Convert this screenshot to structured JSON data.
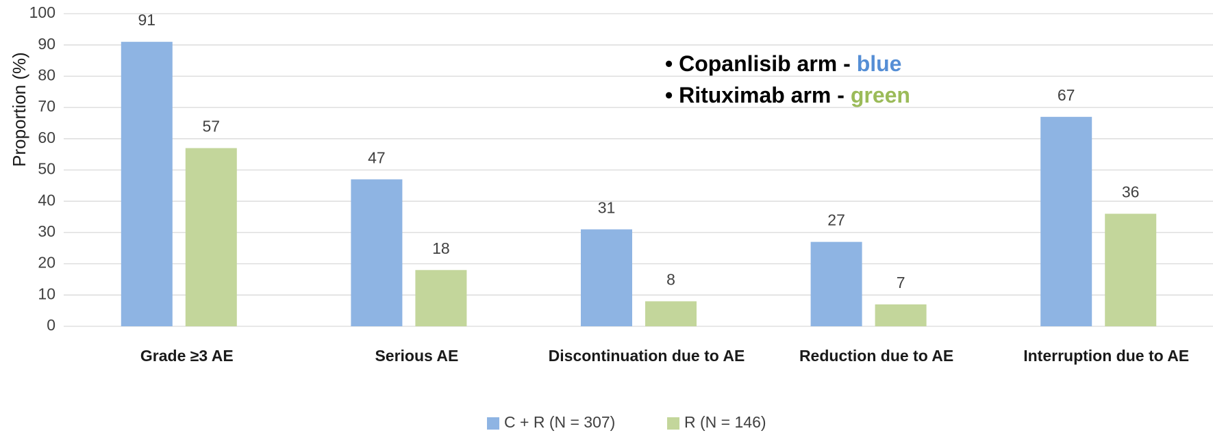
{
  "chart_data": {
    "type": "bar",
    "y_label": "Proportion (%)",
    "categories": [
      "Grade ≥3 AE",
      "Serious AE",
      "Discontinuation due to AE",
      "Reduction due to AE",
      "Interruption due to AE"
    ],
    "series": [
      {
        "name": "C + R (N = 307)",
        "color": "#8eb4e3",
        "values": [
          91,
          47,
          31,
          27,
          67
        ]
      },
      {
        "name": "R (N = 146)",
        "color": "#c3d69b",
        "values": [
          57,
          18,
          8,
          7,
          36
        ]
      }
    ],
    "ylim": [
      0,
      100
    ],
    "yticks": [
      0,
      10,
      20,
      30,
      40,
      50,
      60,
      70,
      80,
      90,
      100
    ],
    "grid": true,
    "legend": "bottom",
    "annotations": [
      {
        "text": "• Copanlisib arm - ",
        "highlight": "blue",
        "highlight_color": "#558ed5"
      },
      {
        "text": "• Rituximab arm - ",
        "highlight": "green",
        "highlight_color": "#9bbb59"
      }
    ]
  }
}
